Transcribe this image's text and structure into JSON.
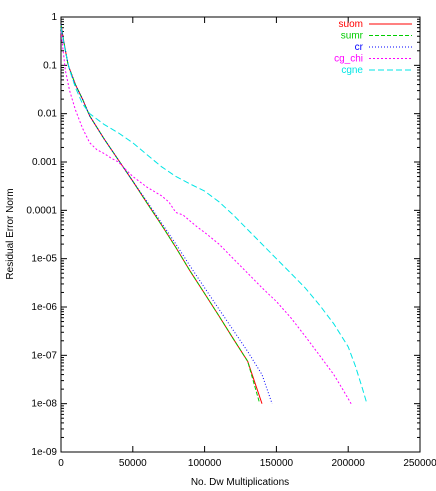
{
  "chart_data": {
    "type": "line",
    "title": "",
    "xlabel": "No. Dw Multiplications",
    "ylabel": "Residual Error Norm",
    "xlim": [
      0,
      250000
    ],
    "ylim": [
      1e-09,
      1
    ],
    "yscale": "log",
    "grid": false,
    "legend_position": "top-right",
    "x_ticks": [
      {
        "value": 0,
        "label": "0"
      },
      {
        "value": 50000,
        "label": "50000"
      },
      {
        "value": 100000,
        "label": "100000"
      },
      {
        "value": 150000,
        "label": "150000"
      },
      {
        "value": 200000,
        "label": "200000"
      },
      {
        "value": 250000,
        "label": "250000"
      }
    ],
    "y_ticks": [
      {
        "value": 1,
        "label": "1"
      },
      {
        "value": 0.1,
        "label": "0.1"
      },
      {
        "value": 0.01,
        "label": "0.01"
      },
      {
        "value": 0.001,
        "label": "0.001"
      },
      {
        "value": 0.0001,
        "label": "0.0001"
      },
      {
        "value": 1e-05,
        "label": "1e-05"
      },
      {
        "value": 1e-06,
        "label": "1e-06"
      },
      {
        "value": 1e-07,
        "label": "1e-07"
      },
      {
        "value": 1e-08,
        "label": "1e-08"
      },
      {
        "value": 1e-09,
        "label": "1e-09"
      }
    ],
    "series": [
      {
        "name": "suom",
        "color": "#ff0000",
        "dash": "",
        "points": [
          [
            0,
            0.7
          ],
          [
            2000,
            0.3
          ],
          [
            5000,
            0.1
          ],
          [
            10000,
            0.04
          ],
          [
            15000,
            0.02
          ],
          [
            20000,
            0.009
          ],
          [
            30000,
            0.003
          ],
          [
            40000,
            0.0011
          ],
          [
            50000,
            0.0004
          ],
          [
            60000,
            0.00014
          ],
          [
            70000,
            5e-05
          ],
          [
            80000,
            1.7e-05
          ],
          [
            90000,
            5.5e-06
          ],
          [
            100000,
            1.9e-06
          ],
          [
            110000,
            6.5e-07
          ],
          [
            120000,
            2.2e-07
          ],
          [
            130000,
            7.5e-08
          ],
          [
            140000,
            1e-08
          ]
        ]
      },
      {
        "name": "sumr",
        "color": "#00cc00",
        "dash": "4,2",
        "points": [
          [
            0,
            0.7
          ],
          [
            2000,
            0.3
          ],
          [
            5000,
            0.1
          ],
          [
            10000,
            0.04
          ],
          [
            15000,
            0.02
          ],
          [
            20000,
            0.009
          ],
          [
            30000,
            0.003
          ],
          [
            40000,
            0.0011
          ],
          [
            50000,
            0.0004
          ],
          [
            60000,
            0.00014
          ],
          [
            70000,
            5e-05
          ],
          [
            80000,
            1.7e-05
          ],
          [
            90000,
            5.5e-06
          ],
          [
            100000,
            1.9e-06
          ],
          [
            110000,
            6.5e-07
          ],
          [
            120000,
            2.2e-07
          ],
          [
            130000,
            7.5e-08
          ],
          [
            138000,
            1.1e-08
          ]
        ]
      },
      {
        "name": "cr",
        "color": "#0000ff",
        "dash": "1,2",
        "points": [
          [
            0,
            0.7
          ],
          [
            2000,
            0.3
          ],
          [
            5000,
            0.1
          ],
          [
            10000,
            0.04
          ],
          [
            15000,
            0.02
          ],
          [
            20000,
            0.009
          ],
          [
            30000,
            0.003
          ],
          [
            40000,
            0.0011
          ],
          [
            50000,
            0.0004
          ],
          [
            60000,
            0.00015
          ],
          [
            70000,
            5.5e-05
          ],
          [
            80000,
            2e-05
          ],
          [
            90000,
            7e-06
          ],
          [
            100000,
            2.5e-06
          ],
          [
            110000,
            9e-07
          ],
          [
            120000,
            3.3e-07
          ],
          [
            130000,
            1.2e-07
          ],
          [
            140000,
            4e-08
          ],
          [
            147000,
            1e-08
          ]
        ]
      },
      {
        "name": "cg_chi",
        "color": "#ff00ff",
        "dash": "2,2",
        "points": [
          [
            0,
            0.5
          ],
          [
            3000,
            0.08
          ],
          [
            6000,
            0.03
          ],
          [
            10000,
            0.012
          ],
          [
            15000,
            0.005
          ],
          [
            20000,
            0.0025
          ],
          [
            25000,
            0.0018
          ],
          [
            30000,
            0.0015
          ],
          [
            35000,
            0.0012
          ],
          [
            40000,
            0.001
          ],
          [
            45000,
            0.0007
          ],
          [
            50000,
            0.0005
          ],
          [
            60000,
            0.0003
          ],
          [
            70000,
            0.0002
          ],
          [
            75000,
            0.00015
          ],
          [
            80000,
            9e-05
          ],
          [
            85000,
            8e-05
          ],
          [
            90000,
            6e-05
          ],
          [
            95000,
            4.5e-05
          ],
          [
            100000,
            3.5e-05
          ],
          [
            110000,
            2e-05
          ],
          [
            120000,
            1e-05
          ],
          [
            130000,
            5e-06
          ],
          [
            140000,
            2.5e-06
          ],
          [
            150000,
            1.3e-06
          ],
          [
            160000,
            6e-07
          ],
          [
            170000,
            2.5e-07
          ],
          [
            180000,
            1e-07
          ],
          [
            190000,
            4e-08
          ],
          [
            197000,
            1.8e-08
          ],
          [
            202000,
            1e-08
          ]
        ]
      },
      {
        "name": "cgne",
        "color": "#00e5e5",
        "dash": "6,3",
        "points": [
          [
            0,
            0.6
          ],
          [
            3000,
            0.2
          ],
          [
            6000,
            0.08
          ],
          [
            10000,
            0.035
          ],
          [
            15000,
            0.016
          ],
          [
            20000,
            0.01
          ],
          [
            30000,
            0.006
          ],
          [
            40000,
            0.004
          ],
          [
            50000,
            0.0025
          ],
          [
            60000,
            0.0014
          ],
          [
            70000,
            0.0008
          ],
          [
            80000,
            0.0005
          ],
          [
            90000,
            0.00035
          ],
          [
            100000,
            0.00025
          ],
          [
            110000,
            0.00015
          ],
          [
            120000,
            8e-05
          ],
          [
            130000,
            4e-05
          ],
          [
            140000,
            2e-05
          ],
          [
            150000,
            1e-05
          ],
          [
            160000,
            5e-06
          ],
          [
            170000,
            2.5e-06
          ],
          [
            180000,
            1.1e-06
          ],
          [
            190000,
            4.5e-07
          ],
          [
            200000,
            1.5e-07
          ],
          [
            205000,
            6e-08
          ],
          [
            210000,
            2e-08
          ],
          [
            213000,
            1e-08
          ]
        ]
      }
    ]
  }
}
